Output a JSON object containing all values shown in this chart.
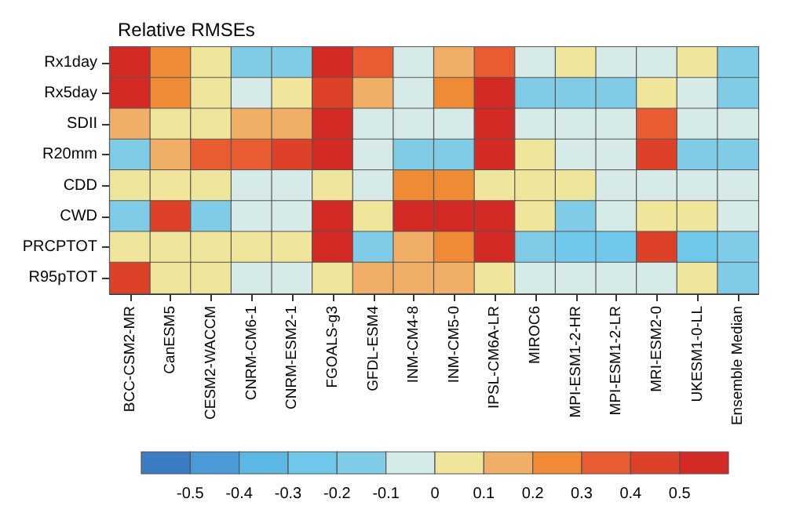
{
  "chart_data": {
    "type": "heatmap",
    "title": "Relative RMSEs",
    "categories": [
      "BCC-CSM2-MR",
      "CanESM5",
      "CESM2-WACCM",
      "CNRM-CM6-1",
      "CNRM-ESM2-1",
      "FGOALS-g3",
      "GFDL-ESM4",
      "INM-CM4-8",
      "INM-CM5-0",
      "IPSL-CM6A-LR",
      "MIROC6",
      "MPI-ESM1-2-HR",
      "MPI-ESM1-2-LR",
      "MRI-ESM2-0",
      "UKESM1-0-LL",
      "Ensemble Median"
    ],
    "y_categories": [
      "Rx1day",
      "Rx5day",
      "SDII",
      "R20mm",
      "CDD",
      "CWD",
      "PRCPTOT",
      "R95pTOT"
    ],
    "cells": [
      [
        0.55,
        0.25,
        0.05,
        -0.15,
        -0.15,
        0.55,
        0.35,
        -0.05,
        0.15,
        0.35,
        -0.05,
        0.05,
        -0.05,
        -0.05,
        0.05,
        -0.15
      ],
      [
        0.55,
        0.25,
        0.05,
        -0.05,
        0.05,
        0.45,
        0.15,
        -0.05,
        0.25,
        0.55,
        -0.15,
        -0.15,
        -0.15,
        0.05,
        -0.05,
        -0.15
      ],
      [
        0.15,
        0.05,
        0.05,
        0.15,
        0.15,
        0.55,
        -0.05,
        -0.05,
        -0.05,
        0.55,
        -0.05,
        -0.05,
        -0.05,
        0.35,
        -0.05,
        -0.05
      ],
      [
        -0.15,
        0.15,
        0.35,
        0.35,
        0.45,
        0.55,
        -0.05,
        -0.15,
        -0.15,
        0.55,
        0.05,
        -0.05,
        -0.05,
        0.45,
        -0.15,
        -0.15
      ],
      [
        0.05,
        0.05,
        0.05,
        -0.05,
        -0.05,
        0.05,
        -0.05,
        0.25,
        0.25,
        0.05,
        0.05,
        0.05,
        -0.05,
        -0.05,
        -0.05,
        -0.05
      ],
      [
        -0.15,
        0.45,
        -0.15,
        -0.05,
        -0.05,
        0.55,
        0.05,
        0.55,
        0.55,
        0.55,
        0.05,
        -0.15,
        -0.05,
        0.05,
        0.05,
        -0.05
      ],
      [
        0.05,
        0.05,
        0.05,
        0.05,
        0.05,
        0.55,
        -0.15,
        0.15,
        0.25,
        0.55,
        -0.15,
        -0.25,
        -0.25,
        0.45,
        -0.25,
        -0.15
      ],
      [
        0.45,
        0.05,
        0.05,
        -0.05,
        -0.05,
        0.05,
        0.15,
        0.15,
        0.15,
        0.05,
        -0.05,
        -0.05,
        -0.05,
        -0.05,
        0.05,
        -0.15
      ]
    ],
    "clim": [
      -0.6,
      0.6
    ],
    "cticks": [
      -0.5,
      -0.4,
      -0.3,
      -0.2,
      -0.1,
      0,
      0.1,
      0.2,
      0.3,
      0.4,
      0.5
    ],
    "colors": [
      "#3a7dc2",
      "#4a9ad8",
      "#5ab8e2",
      "#6fc8ea",
      "#80cce6",
      "#d6ebe8",
      "#efe69c",
      "#f0ae66",
      "#ef8a35",
      "#e95b30",
      "#dd4228",
      "#d42a25"
    ]
  }
}
